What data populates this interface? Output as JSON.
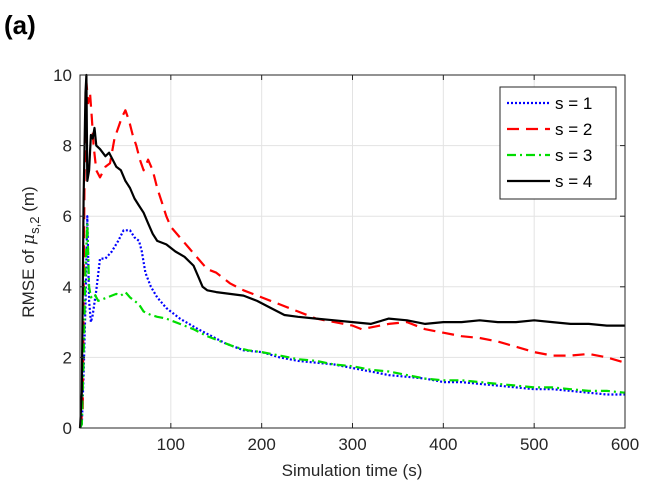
{
  "panel_label": "(a)",
  "chart_data": {
    "type": "line",
    "xlabel": "Simulation time (s)",
    "ylabel_prefix": "RMSE of ",
    "ylabel_symbol": "μ",
    "ylabel_subscript": "s,2",
    "ylabel_suffix": " (m)",
    "xlim": [
      0,
      600
    ],
    "ylim": [
      0,
      10
    ],
    "xticks": [
      100,
      200,
      300,
      400,
      500,
      600
    ],
    "yticks": [
      0,
      2,
      4,
      6,
      8,
      10
    ],
    "grid": true,
    "legend_position": "top-right",
    "series": [
      {
        "name": "s = 1",
        "color": "#0000ff",
        "dash": "2,2",
        "points": [
          [
            0,
            0
          ],
          [
            2,
            0.1
          ],
          [
            4,
            1.5
          ],
          [
            6,
            3.5
          ],
          [
            8,
            6.0
          ],
          [
            10,
            3.6
          ],
          [
            12,
            3.0
          ],
          [
            14,
            3.2
          ],
          [
            18,
            3.9
          ],
          [
            22,
            4.8
          ],
          [
            28,
            4.8
          ],
          [
            35,
            5.0
          ],
          [
            42,
            5.3
          ],
          [
            48,
            5.6
          ],
          [
            55,
            5.6
          ],
          [
            60,
            5.4
          ],
          [
            65,
            5.3
          ],
          [
            68,
            5.0
          ],
          [
            72,
            4.4
          ],
          [
            78,
            4.0
          ],
          [
            85,
            3.7
          ],
          [
            95,
            3.4
          ],
          [
            110,
            3.1
          ],
          [
            120,
            2.95
          ],
          [
            130,
            2.8
          ],
          [
            145,
            2.6
          ],
          [
            160,
            2.4
          ],
          [
            180,
            2.2
          ],
          [
            200,
            2.15
          ],
          [
            220,
            2.0
          ],
          [
            240,
            1.9
          ],
          [
            260,
            1.85
          ],
          [
            280,
            1.8
          ],
          [
            300,
            1.7
          ],
          [
            320,
            1.6
          ],
          [
            340,
            1.5
          ],
          [
            360,
            1.45
          ],
          [
            380,
            1.4
          ],
          [
            400,
            1.3
          ],
          [
            420,
            1.3
          ],
          [
            440,
            1.25
          ],
          [
            460,
            1.2
          ],
          [
            480,
            1.15
          ],
          [
            500,
            1.1
          ],
          [
            520,
            1.1
          ],
          [
            540,
            1.05
          ],
          [
            560,
            1.0
          ],
          [
            580,
            0.95
          ],
          [
            600,
            0.95
          ]
        ]
      },
      {
        "name": "s = 2",
        "color": "#ff0000",
        "dash": "12,7",
        "points": [
          [
            0,
            0
          ],
          [
            3,
            0.5
          ],
          [
            5,
            7.0
          ],
          [
            7,
            9.8
          ],
          [
            9,
            9.2
          ],
          [
            11,
            9.5
          ],
          [
            13,
            8.8
          ],
          [
            15,
            8.0
          ],
          [
            18,
            7.3
          ],
          [
            22,
            7.1
          ],
          [
            28,
            7.4
          ],
          [
            33,
            7.5
          ],
          [
            38,
            8.2
          ],
          [
            42,
            8.5
          ],
          [
            46,
            8.8
          ],
          [
            50,
            9.0
          ],
          [
            54,
            8.7
          ],
          [
            58,
            8.3
          ],
          [
            62,
            8.0
          ],
          [
            66,
            7.6
          ],
          [
            70,
            7.3
          ],
          [
            75,
            7.6
          ],
          [
            80,
            7.3
          ],
          [
            85,
            6.8
          ],
          [
            90,
            6.4
          ],
          [
            95,
            6.0
          ],
          [
            100,
            5.7
          ],
          [
            110,
            5.4
          ],
          [
            120,
            5.1
          ],
          [
            130,
            4.8
          ],
          [
            140,
            4.5
          ],
          [
            150,
            4.4
          ],
          [
            165,
            4.1
          ],
          [
            180,
            3.9
          ],
          [
            200,
            3.7
          ],
          [
            220,
            3.5
          ],
          [
            240,
            3.3
          ],
          [
            260,
            3.1
          ],
          [
            280,
            3.0
          ],
          [
            300,
            2.9
          ],
          [
            310,
            2.8
          ],
          [
            320,
            2.85
          ],
          [
            340,
            2.95
          ],
          [
            360,
            3.0
          ],
          [
            380,
            2.8
          ],
          [
            400,
            2.7
          ],
          [
            420,
            2.6
          ],
          [
            440,
            2.55
          ],
          [
            460,
            2.45
          ],
          [
            480,
            2.3
          ],
          [
            500,
            2.15
          ],
          [
            520,
            2.05
          ],
          [
            540,
            2.05
          ],
          [
            560,
            2.1
          ],
          [
            580,
            2.0
          ],
          [
            600,
            1.85
          ]
        ]
      },
      {
        "name": "s = 3",
        "color": "#00dd00",
        "dash": "9,4,2,4",
        "points": [
          [
            0,
            0
          ],
          [
            2,
            0.1
          ],
          [
            4,
            2.0
          ],
          [
            6,
            4.5
          ],
          [
            8,
            5.8
          ],
          [
            10,
            4.0
          ],
          [
            12,
            3.7
          ],
          [
            16,
            3.8
          ],
          [
            20,
            3.6
          ],
          [
            25,
            3.65
          ],
          [
            30,
            3.7
          ],
          [
            35,
            3.75
          ],
          [
            40,
            3.8
          ],
          [
            45,
            3.75
          ],
          [
            50,
            3.85
          ],
          [
            55,
            3.7
          ],
          [
            60,
            3.6
          ],
          [
            65,
            3.5
          ],
          [
            70,
            3.3
          ],
          [
            78,
            3.2
          ],
          [
            85,
            3.15
          ],
          [
            95,
            3.1
          ],
          [
            110,
            2.95
          ],
          [
            125,
            2.8
          ],
          [
            140,
            2.6
          ],
          [
            155,
            2.45
          ],
          [
            170,
            2.3
          ],
          [
            185,
            2.2
          ],
          [
            200,
            2.15
          ],
          [
            220,
            2.05
          ],
          [
            240,
            1.95
          ],
          [
            260,
            1.9
          ],
          [
            280,
            1.8
          ],
          [
            300,
            1.75
          ],
          [
            320,
            1.65
          ],
          [
            340,
            1.6
          ],
          [
            360,
            1.5
          ],
          [
            380,
            1.4
          ],
          [
            400,
            1.35
          ],
          [
            420,
            1.35
          ],
          [
            440,
            1.3
          ],
          [
            460,
            1.25
          ],
          [
            480,
            1.2
          ],
          [
            500,
            1.15
          ],
          [
            520,
            1.15
          ],
          [
            540,
            1.1
          ],
          [
            560,
            1.05
          ],
          [
            580,
            1.05
          ],
          [
            600,
            1.0
          ]
        ]
      },
      {
        "name": "s = 4",
        "color": "#000000",
        "dash": "",
        "points": [
          [
            0,
            0
          ],
          [
            2,
            1.0
          ],
          [
            4,
            6.5
          ],
          [
            6,
            9.5
          ],
          [
            7,
            10.0
          ],
          [
            8,
            7.0
          ],
          [
            10,
            7.3
          ],
          [
            12,
            8.3
          ],
          [
            14,
            8.2
          ],
          [
            16,
            8.5
          ],
          [
            18,
            8.0
          ],
          [
            22,
            7.9
          ],
          [
            28,
            7.7
          ],
          [
            32,
            7.8
          ],
          [
            36,
            7.6
          ],
          [
            40,
            7.4
          ],
          [
            45,
            7.3
          ],
          [
            50,
            7.0
          ],
          [
            55,
            6.8
          ],
          [
            60,
            6.5
          ],
          [
            65,
            6.3
          ],
          [
            70,
            6.1
          ],
          [
            75,
            5.8
          ],
          [
            80,
            5.5
          ],
          [
            85,
            5.3
          ],
          [
            95,
            5.2
          ],
          [
            105,
            5.0
          ],
          [
            115,
            4.85
          ],
          [
            125,
            4.6
          ],
          [
            130,
            4.3
          ],
          [
            135,
            4.0
          ],
          [
            140,
            3.9
          ],
          [
            150,
            3.85
          ],
          [
            165,
            3.8
          ],
          [
            180,
            3.75
          ],
          [
            195,
            3.6
          ],
          [
            210,
            3.4
          ],
          [
            225,
            3.2
          ],
          [
            240,
            3.15
          ],
          [
            260,
            3.1
          ],
          [
            280,
            3.05
          ],
          [
            300,
            3.0
          ],
          [
            320,
            2.95
          ],
          [
            340,
            3.1
          ],
          [
            360,
            3.05
          ],
          [
            380,
            2.95
          ],
          [
            400,
            3.0
          ],
          [
            420,
            3.0
          ],
          [
            440,
            3.05
          ],
          [
            460,
            3.0
          ],
          [
            480,
            3.0
          ],
          [
            500,
            3.05
          ],
          [
            520,
            3.0
          ],
          [
            540,
            2.95
          ],
          [
            560,
            2.95
          ],
          [
            580,
            2.9
          ],
          [
            600,
            2.9
          ]
        ]
      }
    ]
  }
}
